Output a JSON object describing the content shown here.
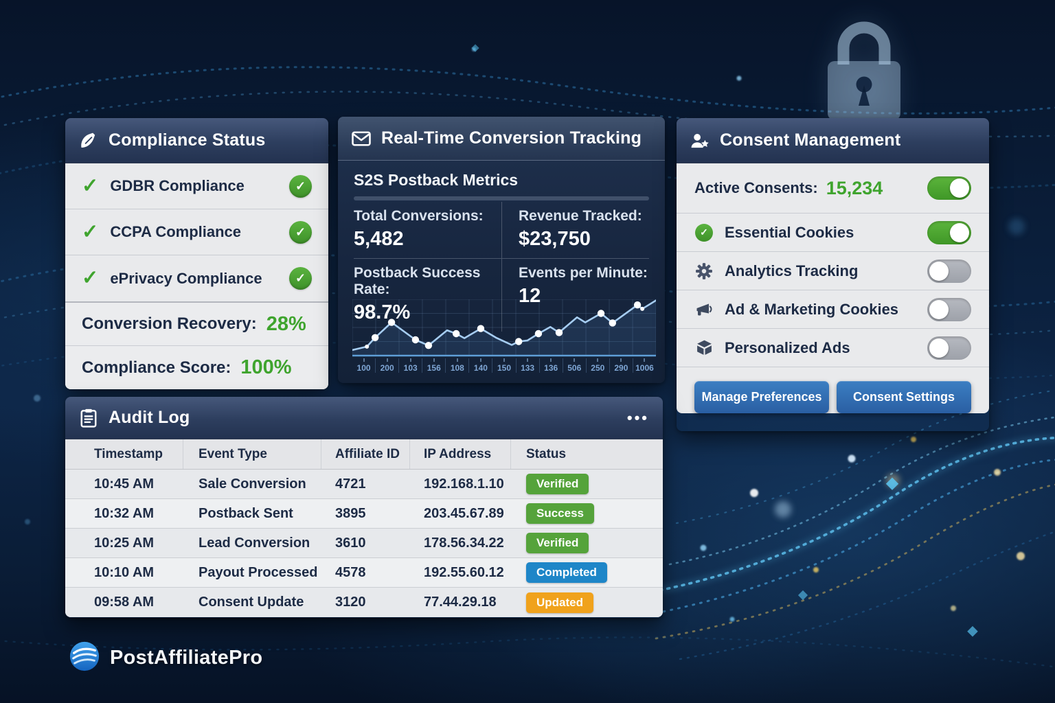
{
  "compliance_card": {
    "title": "Compliance Status",
    "items": [
      {
        "label": "GDBR Compliance"
      },
      {
        "label": "CCPA Compliance"
      },
      {
        "label": "ePrivacy Compliance"
      }
    ],
    "stats": [
      {
        "label": "Conversion Recovery:",
        "value": "28%"
      },
      {
        "label": "Compliance Score:",
        "value": "100%"
      }
    ]
  },
  "realtime_card": {
    "title": "Real-Time Conversion Tracking",
    "subtitle": "S2S Postback Metrics",
    "metrics": [
      {
        "label": "Total Conversions:",
        "value": "5,482"
      },
      {
        "label": "Revenue Tracked:",
        "value": "$23,750"
      },
      {
        "label": "Postback Success Rate:",
        "value": "98.7%"
      },
      {
        "label": "Events per Minute:",
        "value": "12"
      }
    ]
  },
  "chart_data": {
    "type": "line",
    "title": "S2S Postback Metrics trend",
    "x_labels": [
      "100",
      "200",
      "103",
      "156",
      "108",
      "140",
      "150",
      "133",
      "136",
      "506",
      "250",
      "290",
      "1006"
    ],
    "points": [
      [
        0,
        10,
        0
      ],
      [
        4.8,
        16,
        1
      ],
      [
        7.5,
        32,
        2
      ],
      [
        12.9,
        59,
        2
      ],
      [
        20.8,
        28,
        2
      ],
      [
        25.1,
        18,
        2
      ],
      [
        31.2,
        45,
        0
      ],
      [
        34.2,
        39,
        2
      ],
      [
        36.9,
        31,
        0
      ],
      [
        42.3,
        48,
        2
      ],
      [
        47.3,
        32,
        0
      ],
      [
        52.5,
        19,
        0
      ],
      [
        54.8,
        25,
        2
      ],
      [
        57.7,
        27,
        0
      ],
      [
        61.3,
        39,
        2
      ],
      [
        65.2,
        51,
        0
      ],
      [
        68.1,
        41,
        2
      ],
      [
        74,
        68,
        0
      ],
      [
        76.7,
        59,
        0
      ],
      [
        81.9,
        75,
        2
      ],
      [
        85.7,
        58,
        2
      ],
      [
        93.9,
        90,
        2
      ],
      [
        95.5,
        83,
        1
      ],
      [
        100,
        98,
        0
      ]
    ],
    "ylim": [
      0,
      100
    ],
    "grid": true,
    "colors": {
      "line": "#a6cdf2",
      "dot": "#ffffff",
      "baseline": "#5f9fd8",
      "grid": "rgba(120,150,190,0.22)",
      "area": "rgba(100,160,230,0.13)"
    }
  },
  "consent_card": {
    "title": "Consent Management",
    "active_label": "Active Consents:",
    "active_value": "15,234",
    "active_toggle_on": true,
    "toggles": [
      {
        "label": "Essential Cookies",
        "icon": "check-circle-icon",
        "on": true
      },
      {
        "label": "Analytics Tracking",
        "icon": "gear-icon",
        "on": false
      },
      {
        "label": "Ad & Marketing Cookies",
        "icon": "megaphone-icon",
        "on": false
      },
      {
        "label": "Personalized Ads",
        "icon": "cube-icon",
        "on": false
      }
    ],
    "buttons": [
      {
        "label": "Manage Preferences"
      },
      {
        "label": "Consent Settings"
      }
    ]
  },
  "audit_card": {
    "title": "Audit Log",
    "menu_label": "•••",
    "columns": [
      "Timestamp",
      "Event Type",
      "Affiliate ID",
      "IP Address",
      "Status"
    ],
    "rows": [
      {
        "timestamp": "10:45 AM",
        "event": "Sale Conversion",
        "affiliate_id": "4721",
        "ip": "192.168.1.10",
        "status": "Verified",
        "status_color": "green"
      },
      {
        "timestamp": "10:32 AM",
        "event": "Postback Sent",
        "affiliate_id": "3895",
        "ip": "203.45.67.89",
        "status": "Success",
        "status_color": "green"
      },
      {
        "timestamp": "10:25 AM",
        "event": "Lead Conversion",
        "affiliate_id": "3610",
        "ip": "178.56.34.22",
        "status": "Verified",
        "status_color": "green"
      },
      {
        "timestamp": "10:10 AM",
        "event": "Payout Processed",
        "affiliate_id": "4578",
        "ip": "192.55.60.12",
        "status": "Completed",
        "status_color": "blue"
      },
      {
        "timestamp": "09:58 AM",
        "event": "Consent Update",
        "affiliate_id": "3120",
        "ip": "77.44.29.18",
        "status": "Updated",
        "status_color": "orange"
      }
    ]
  },
  "logo": {
    "text": "PostAffiliatePro"
  },
  "glyphs": {
    "check": "✓"
  },
  "colors": {
    "green": "#55a33b",
    "blue": "#1e86c8",
    "orange": "#f0a21c",
    "accent_green": "#3fa42e",
    "header_navy": "#2d3e5e",
    "panel_gray": "#e9eaec",
    "button_blue": "#2f6db1"
  }
}
